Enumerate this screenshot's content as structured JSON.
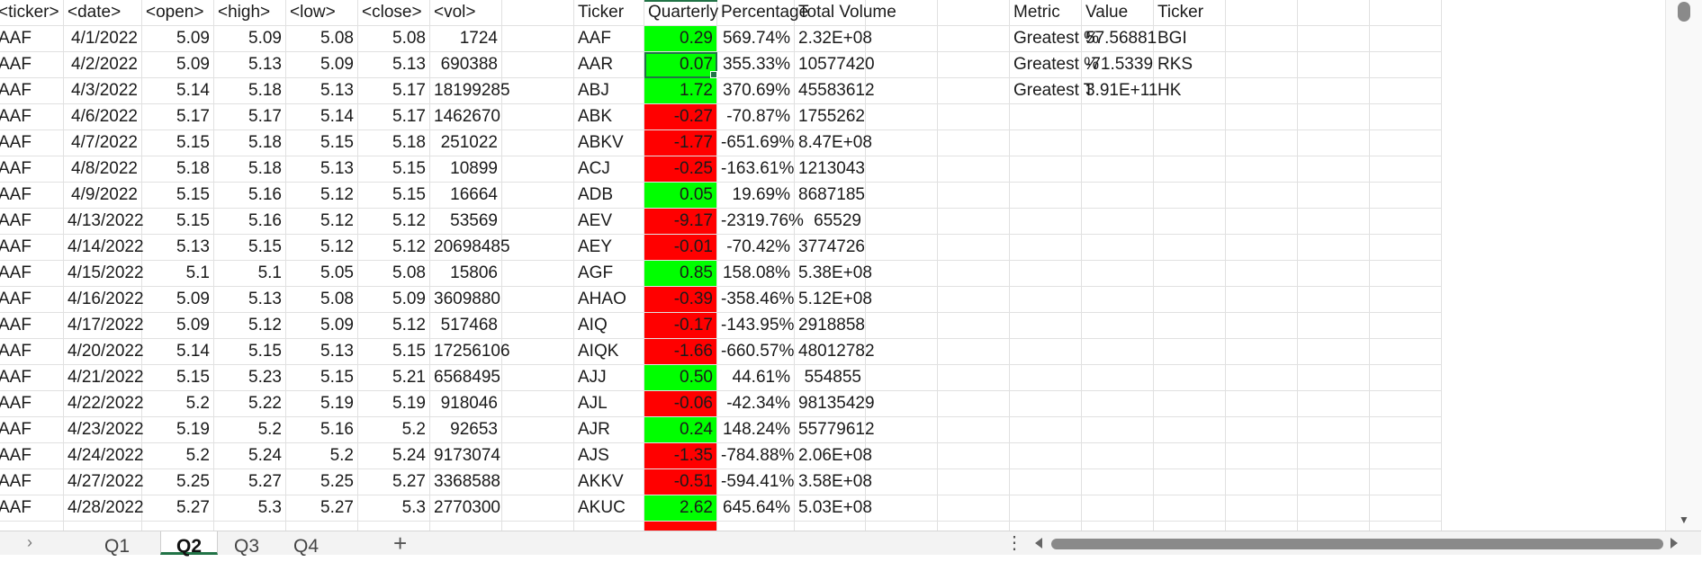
{
  "columns": {
    "stock": [
      "<ticker>",
      "<date>",
      "<open>",
      "<high>",
      "<low>",
      "<close>",
      "<vol>"
    ],
    "summary": [
      "Ticker",
      "Quarterly",
      "Percentage",
      "Total Volume"
    ],
    "metric": [
      "Metric",
      "Value",
      "Ticker"
    ]
  },
  "stock_rows": [
    [
      "AAF",
      "4/1/2022",
      "5.09",
      "5.09",
      "5.08",
      "5.08",
      "1724"
    ],
    [
      "AAF",
      "4/2/2022",
      "5.09",
      "5.13",
      "5.09",
      "5.13",
      "690388"
    ],
    [
      "AAF",
      "4/3/2022",
      "5.14",
      "5.18",
      "5.13",
      "5.17",
      "18199285"
    ],
    [
      "AAF",
      "4/6/2022",
      "5.17",
      "5.17",
      "5.14",
      "5.17",
      "1462670"
    ],
    [
      "AAF",
      "4/7/2022",
      "5.15",
      "5.18",
      "5.15",
      "5.18",
      "251022"
    ],
    [
      "AAF",
      "4/8/2022",
      "5.18",
      "5.18",
      "5.13",
      "5.15",
      "10899"
    ],
    [
      "AAF",
      "4/9/2022",
      "5.15",
      "5.16",
      "5.12",
      "5.15",
      "16664"
    ],
    [
      "AAF",
      "4/13/2022",
      "5.15",
      "5.16",
      "5.12",
      "5.12",
      "53569"
    ],
    [
      "AAF",
      "4/14/2022",
      "5.13",
      "5.15",
      "5.12",
      "5.12",
      "20698485"
    ],
    [
      "AAF",
      "4/15/2022",
      "5.1",
      "5.1",
      "5.05",
      "5.08",
      "15806"
    ],
    [
      "AAF",
      "4/16/2022",
      "5.09",
      "5.13",
      "5.08",
      "5.09",
      "3609880"
    ],
    [
      "AAF",
      "4/17/2022",
      "5.09",
      "5.12",
      "5.09",
      "5.12",
      "517468"
    ],
    [
      "AAF",
      "4/20/2022",
      "5.14",
      "5.15",
      "5.13",
      "5.15",
      "17256106"
    ],
    [
      "AAF",
      "4/21/2022",
      "5.15",
      "5.23",
      "5.15",
      "5.21",
      "6568495"
    ],
    [
      "AAF",
      "4/22/2022",
      "5.2",
      "5.22",
      "5.19",
      "5.19",
      "918046"
    ],
    [
      "AAF",
      "4/23/2022",
      "5.19",
      "5.2",
      "5.16",
      "5.2",
      "92653"
    ],
    [
      "AAF",
      "4/24/2022",
      "5.2",
      "5.24",
      "5.2",
      "5.24",
      "9173074"
    ],
    [
      "AAF",
      "4/27/2022",
      "5.25",
      "5.27",
      "5.25",
      "5.27",
      "3368588"
    ],
    [
      "AAF",
      "4/28/2022",
      "5.27",
      "5.3",
      "5.27",
      "5.3",
      "2770300"
    ]
  ],
  "summary_rows": [
    {
      "ticker": "AAF",
      "quarterly": "0.29",
      "percentage": "569.74%",
      "volume": "2.32E+08",
      "status": "positive"
    },
    {
      "ticker": "AAR",
      "quarterly": "0.07",
      "percentage": "355.33%",
      "volume": "10577420",
      "status": "positive"
    },
    {
      "ticker": "ABJ",
      "quarterly": "1.72",
      "percentage": "370.69%",
      "volume": "45583612",
      "status": "positive"
    },
    {
      "ticker": "ABK",
      "quarterly": "-0.27",
      "percentage": "-70.87%",
      "volume": "1755262",
      "status": "negative"
    },
    {
      "ticker": "ABKV",
      "quarterly": "-1.77",
      "percentage": "-651.69%",
      "volume": "8.47E+08",
      "status": "negative"
    },
    {
      "ticker": "ACJ",
      "quarterly": "-0.25",
      "percentage": "-163.61%",
      "volume": "1213043",
      "status": "negative"
    },
    {
      "ticker": "ADB",
      "quarterly": "0.05",
      "percentage": "19.69%",
      "volume": "8687185",
      "status": "positive"
    },
    {
      "ticker": "AEV",
      "quarterly": "-9.17",
      "percentage": "-2319.76%",
      "volume": "65529",
      "status": "negative"
    },
    {
      "ticker": "AEY",
      "quarterly": "-0.01",
      "percentage": "-70.42%",
      "volume": "3774726",
      "status": "negative"
    },
    {
      "ticker": "AGF",
      "quarterly": "0.85",
      "percentage": "158.08%",
      "volume": "5.38E+08",
      "status": "positive"
    },
    {
      "ticker": "AHAO",
      "quarterly": "-0.39",
      "percentage": "-358.46%",
      "volume": "5.12E+08",
      "status": "negative"
    },
    {
      "ticker": "AIQ",
      "quarterly": "-0.17",
      "percentage": "-143.95%",
      "volume": "2918858",
      "status": "negative"
    },
    {
      "ticker": "AIQK",
      "quarterly": "-1.66",
      "percentage": "-660.57%",
      "volume": "48012782",
      "status": "negative"
    },
    {
      "ticker": "AJJ",
      "quarterly": "0.50",
      "percentage": "44.61%",
      "volume": "554855",
      "status": "positive"
    },
    {
      "ticker": "AJL",
      "quarterly": "-0.06",
      "percentage": "-42.34%",
      "volume": "98135429",
      "status": "negative"
    },
    {
      "ticker": "AJR",
      "quarterly": "0.24",
      "percentage": "148.24%",
      "volume": "55779612",
      "status": "positive"
    },
    {
      "ticker": "AJS",
      "quarterly": "-1.35",
      "percentage": "-784.88%",
      "volume": "2.06E+08",
      "status": "negative"
    },
    {
      "ticker": "AKKV",
      "quarterly": "-0.51",
      "percentage": "-594.41%",
      "volume": "3.58E+08",
      "status": "negative"
    },
    {
      "ticker": "AKUC",
      "quarterly": "2.62",
      "percentage": "645.64%",
      "volume": "5.03E+08",
      "status": "positive"
    }
  ],
  "metric_rows": [
    [
      "Greatest %",
      "57.56881",
      "BGI"
    ],
    [
      "Greatest %",
      "-71.5339",
      "RKS"
    ],
    [
      "Greatest T",
      "3.91E+11",
      "HK"
    ]
  ],
  "colors": {
    "positive": "#00ff00",
    "negative": "#ff0000",
    "accent": "#217346"
  },
  "sheet_tabs": [
    "Q1",
    "Q2",
    "Q3",
    "Q4"
  ],
  "active_sheet": "Q2",
  "selected_cell": "J3"
}
